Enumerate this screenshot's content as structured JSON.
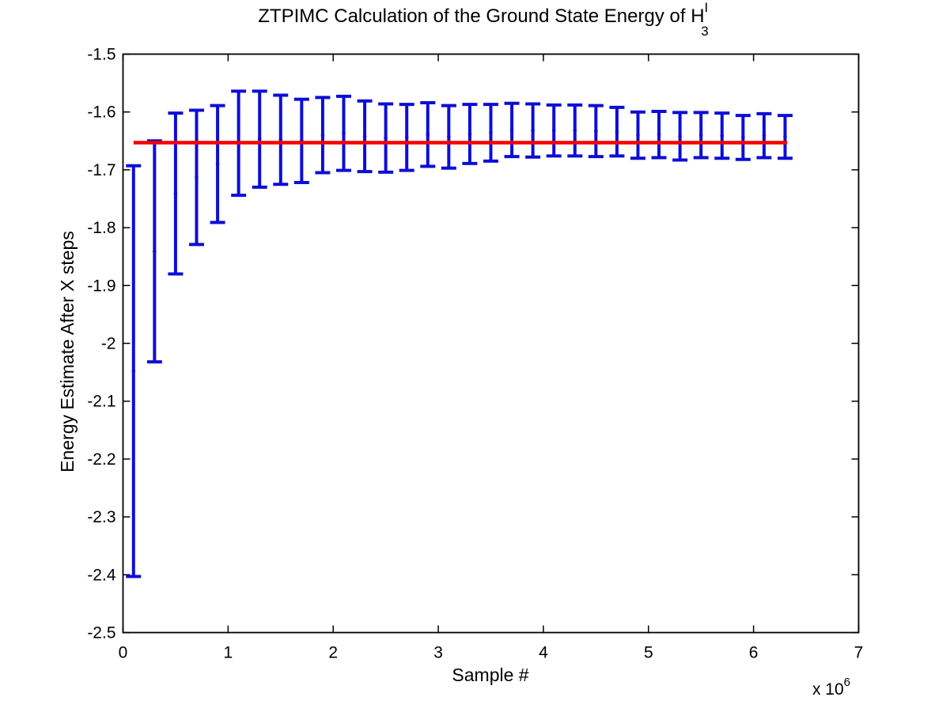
{
  "figure": {
    "background": "#ffffff",
    "title": {
      "main": "ZTPIMC Calculation of the Ground State Energy of H",
      "sup": "I",
      "sub": "3"
    },
    "xlabel": "Sample #",
    "ylabel": "Energy Estimate After X steps",
    "axis_multiplier": {
      "text": "x 10",
      "exponent": "6"
    }
  },
  "chart_data": {
    "type": "errorbar",
    "title": "ZTPIMC Calculation of the Ground State Energy of H_3^I",
    "xlabel": "Sample #",
    "ylabel": "Energy Estimate After X steps",
    "x_units_note": "x axis shown in units of 10^6 (label: x 10^6)",
    "grid": false,
    "legend": "none",
    "xlim": [
      0,
      7000000
    ],
    "ylim": [
      -2.5,
      -1.5
    ],
    "xticks": {
      "values": [
        0,
        1000000,
        2000000,
        3000000,
        4000000,
        5000000,
        6000000,
        7000000
      ],
      "labels": [
        "0",
        "1",
        "2",
        "3",
        "4",
        "5",
        "6",
        "7"
      ]
    },
    "yticks": {
      "values": [
        -1.5,
        -1.6,
        -1.7,
        -1.8,
        -1.9,
        -2.0,
        -2.1,
        -2.2,
        -2.3,
        -2.4,
        -2.5
      ],
      "labels": [
        "-1.5",
        "-1.6",
        "-1.7",
        "-1.8",
        "-1.9",
        "-2",
        "-2.1",
        "-2.2",
        "-2.3",
        "-2.4",
        "-2.5"
      ]
    },
    "series": [
      {
        "name": "energy-estimate-errorbars",
        "color": "#0d0dd8",
        "marker": "dot",
        "x": [
          100000,
          300000,
          500000,
          700000,
          900000,
          1100000,
          1300000,
          1500000,
          1700000,
          1900000,
          2100000,
          2300000,
          2500000,
          2700000,
          2900000,
          3100000,
          3300000,
          3500000,
          3700000,
          3900000,
          4100000,
          4300000,
          4500000,
          4700000,
          4900000,
          5100000,
          5300000,
          5500000,
          5700000,
          5900000,
          6100000,
          6300000
        ],
        "mean": [
          -2.048,
          -1.841,
          -1.741,
          -1.713,
          -1.69,
          -1.654,
          -1.647,
          -1.648,
          -1.65,
          -1.64,
          -1.637,
          -1.642,
          -1.645,
          -1.644,
          -1.639,
          -1.643,
          -1.638,
          -1.636,
          -1.631,
          -1.632,
          -1.632,
          -1.632,
          -1.633,
          -1.634,
          -1.64,
          -1.639,
          -1.642,
          -1.64,
          -1.641,
          -1.644,
          -1.641,
          -1.643
        ],
        "error": [
          0.355,
          0.191,
          0.139,
          0.116,
          0.101,
          0.09,
          0.083,
          0.077,
          0.072,
          0.065,
          0.064,
          0.061,
          0.059,
          0.057,
          0.055,
          0.054,
          0.051,
          0.049,
          0.046,
          0.046,
          0.044,
          0.044,
          0.044,
          0.042,
          0.04,
          0.04,
          0.041,
          0.039,
          0.039,
          0.038,
          0.038,
          0.037
        ]
      }
    ],
    "reference_line": {
      "name": "converged-energy-line",
      "color": "#f40000",
      "value": -1.653,
      "x_start": 100000,
      "x_end": 6320000
    }
  }
}
